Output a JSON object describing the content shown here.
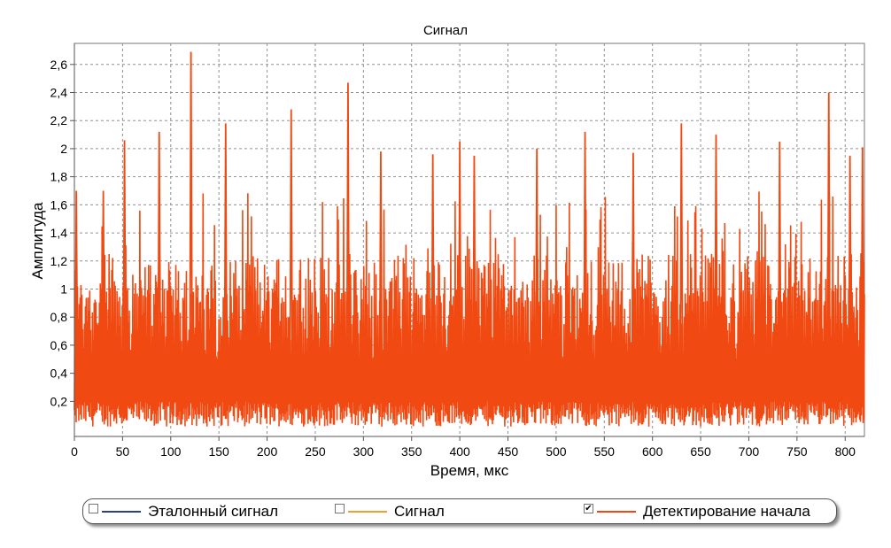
{
  "chart_data": {
    "type": "line",
    "title": "Сигнал",
    "xlabel": "Время, мкс",
    "ylabel": "Амплитуда",
    "xlim": [
      0,
      820
    ],
    "ylim": [
      -0.05,
      2.75
    ],
    "xticks": [
      0,
      50,
      100,
      150,
      200,
      250,
      300,
      350,
      400,
      450,
      500,
      550,
      600,
      650,
      700,
      750,
      800
    ],
    "xtick_labels": [
      "0",
      "50",
      "100",
      "150",
      "200",
      "250",
      "300",
      "350",
      "400",
      "450",
      "500",
      "550",
      "600",
      "650",
      "700",
      "750",
      "800"
    ],
    "yticks": [
      0.2,
      0.4,
      0.6,
      0.8,
      1,
      1.2,
      1.4,
      1.6,
      1.8,
      2,
      2.2,
      2.4,
      2.6
    ],
    "ytick_labels": [
      "0,2",
      "0,4",
      "0,6",
      "0,8",
      "1",
      "1,2",
      "1,4",
      "1,6",
      "1,8",
      "2",
      "2,2",
      "2,4",
      "2,6"
    ],
    "grid": true,
    "legend_position": "bottom",
    "series": [
      {
        "name": "Эталонный сигнал",
        "color": "#2b3f8c",
        "visible": false,
        "checked": false
      },
      {
        "name": "Сигнал",
        "color": "#f0a030",
        "visible": false,
        "checked": false
      },
      {
        "name": "Детектирование начала",
        "color": "#f04a12",
        "visible": true,
        "checked": true,
        "style": "dense noise between approximately 0.02 and 1.2 with sharp peaks",
        "peaks": [
          {
            "x": 2,
            "y": 1.7
          },
          {
            "x": 30,
            "y": 1.7
          },
          {
            "x": 52,
            "y": 2.06
          },
          {
            "x": 88,
            "y": 2.12
          },
          {
            "x": 121,
            "y": 2.69
          },
          {
            "x": 157,
            "y": 2.18
          },
          {
            "x": 225,
            "y": 2.28
          },
          {
            "x": 284,
            "y": 2.47
          },
          {
            "x": 318,
            "y": 1.98
          },
          {
            "x": 372,
            "y": 1.96
          },
          {
            "x": 400,
            "y": 2.05
          },
          {
            "x": 415,
            "y": 1.95
          },
          {
            "x": 480,
            "y": 2.0
          },
          {
            "x": 530,
            "y": 2.12
          },
          {
            "x": 580,
            "y": 1.97
          },
          {
            "x": 630,
            "y": 2.18
          },
          {
            "x": 666,
            "y": 2.1
          },
          {
            "x": 732,
            "y": 2.05
          },
          {
            "x": 783,
            "y": 2.4
          },
          {
            "x": 805,
            "y": 1.95
          },
          {
            "x": 818,
            "y": 2.01
          }
        ]
      }
    ]
  }
}
